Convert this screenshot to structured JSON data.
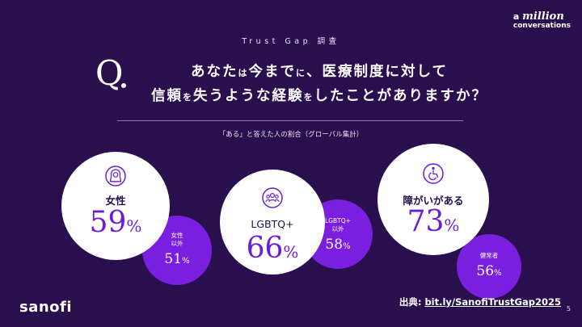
{
  "brand_top": {
    "line1_prefix": "a",
    "line1_word": "million",
    "line2": "conversations"
  },
  "eyebrow": "Trust Gap 調査",
  "question": {
    "mark": "Q",
    "line1_a": "あなた",
    "line1_b": "は",
    "line1_c": "今まで",
    "line1_d": "に",
    "line1_e": "、医療制度に対して",
    "line2_a": "信頼",
    "line2_b": "を",
    "line2_c": "失うような経験",
    "line2_d": "を",
    "line2_e": "したことがありますか？"
  },
  "subtitle": "「ある」と答えた人の割合（グローバル集計）",
  "groups": [
    {
      "label": "女性",
      "value": "59",
      "icon": "woman-hijab-icon",
      "compare_label_1": "女性",
      "compare_label_2": "以外",
      "compare_value": "51"
    },
    {
      "label": "LGBTQ+",
      "value": "66",
      "icon": "group-people-icon",
      "compare_label_1": "LGBTQ+",
      "compare_label_2": "以外",
      "compare_value": "58"
    },
    {
      "label": "障がいがある",
      "value": "73",
      "icon": "wheelchair-icon",
      "compare_label_1": "健常者",
      "compare_label_2": "",
      "compare_value": "56"
    }
  ],
  "percent_symbol": "%",
  "source": {
    "prefix": "出典: ",
    "link": "bit.ly/SanofiTrustGap2025"
  },
  "logo": "sanofi",
  "page_number": "5",
  "colors": {
    "background": "#2a0f4f",
    "accent": "#7a1fe0",
    "accent_text": "#6b1cd8"
  }
}
